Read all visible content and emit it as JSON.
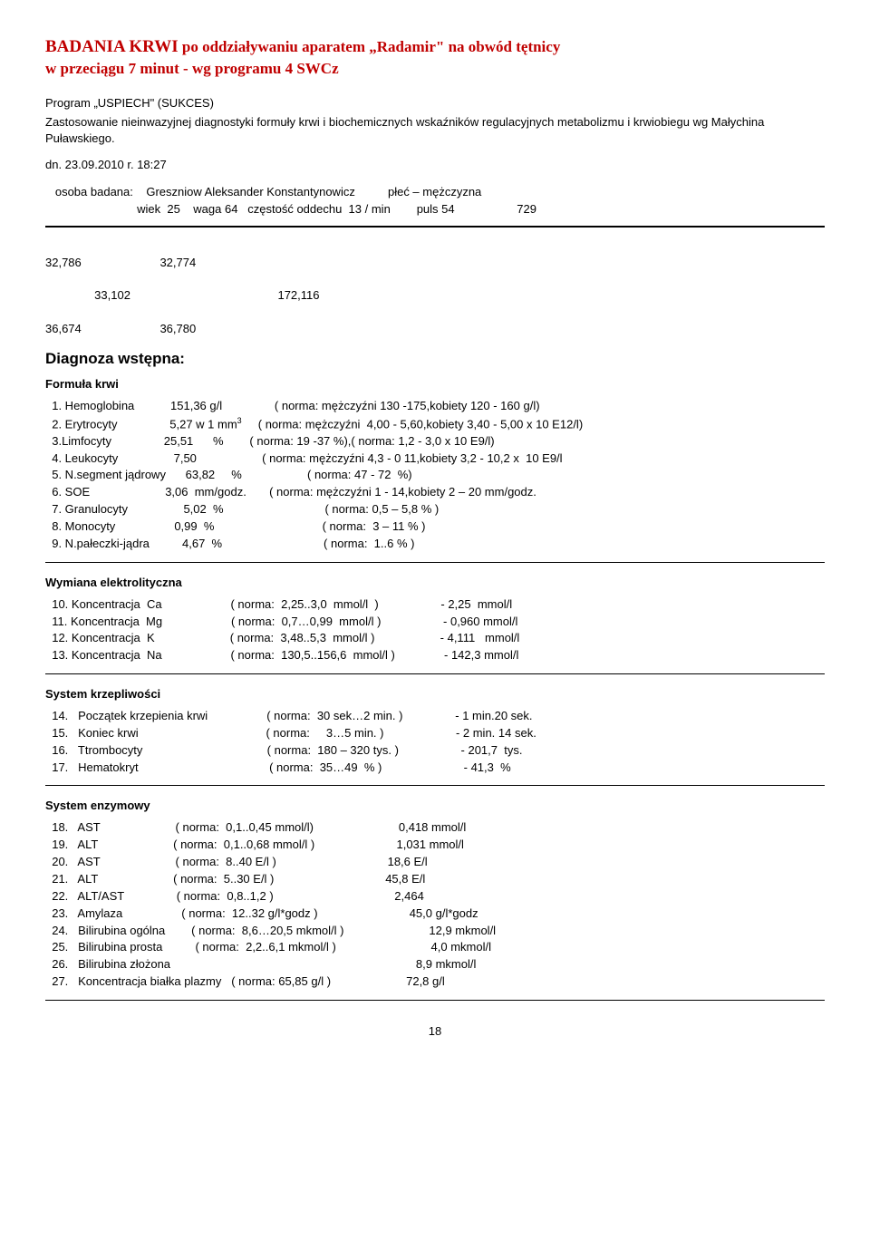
{
  "header": {
    "title_line1_a": "BADANIA  KRWI",
    "title_line1_b": "  po oddziaływaniu aparatem „Radamir\" na obwód tętnicy",
    "title_line2": "  w przeciągu 7 minut -  wg programu 4  SWCz"
  },
  "intro": {
    "line1": "Program „USPIECH\" (SUKCES)",
    "line2": "Zastosowanie nieinwazyjnej diagnostyki formuły krwi i biochemicznych wskaźników regulacyjnych metabolizmu i krwiobiegu wg Małychina Puławskiego."
  },
  "datetime": "dn. 23.09.2010 r.   18:27",
  "subject": {
    "label": "osoba badana:",
    "name": "Greszniow Aleksander Konstantynowicz",
    "sex": "płeć – mężczyzna",
    "details": "wiek  25    waga 64   częstość oddechu  13 / min        puls 54                   729"
  },
  "nums": {
    "l1": "32,786                        32,774",
    "l2": "               33,102                                             172,116",
    "l3": "36,674                        36,780"
  },
  "diag_h": "Diagnoza  wstępna:",
  "formula_h": "Formuła krwi",
  "formula_rows": [
    "  1. Hemoglobina           151,36 g/l                ( norma: mężczyźni 130 -175,kobiety 120 - 160 g/l)",
    "  2. Erytrocyty                5,27 w 1 mm³     ( norma: mężczyźni  4,00 - 5,60,kobiety 3,40 - 5,00 x 10 E12/l)",
    "  3.Limfocyty                25,51      %        ( norma: 19 -37 %),( norma: 1,2 - 3,0 x 10 E9/l)",
    "  4. Leukocyty                 7,50                    ( norma: mężczyźni 4,3 - 0 11,kobiety 3,2 - 10,2 x  10 E9/l",
    "  5. N.segment jądrowy      63,82     %                    ( norma: 47 - 72  %)",
    "  6. SOE                       3,06  mm/godz.       ( norma: mężczyźni 1 - 14,kobiety 2 – 20 mm/godz.",
    "  7. Granulocyty                 5,02  %                               ( norma: 0,5 – 5,8 % )",
    "  8. Monocyty                  0,99  %                                 ( norma:  3 – 11 % )",
    "  9. N.pałeczki-jądra          4,67  %                               ( norma:  1..6 % )"
  ],
  "electro_h": "Wymiana elektrolityczna",
  "electro_rows": [
    "  10. Koncentracja  Ca                     ( norma:  2,25..3,0  mmol/l  )                   - 2,25  mmol/l",
    "  11. Koncentracja  Mg                     ( norma:  0,7…0,99  mmol/l )                   - 0,960 mmol/l",
    "  12. Koncentracja  K                       ( norma:  3,48..5,3  mmol/l )                    - 4,111   mmol/l",
    "  13. Koncentracja  Na                     ( norma:  130,5..156,6  mmol/l )               - 142,3 mmol/l"
  ],
  "coag_h": "System krzepliwości",
  "coag_rows": [
    "  14.   Początek krzepienia krwi                  ( norma:  30 sek…2 min. )                - 1 min.20 sek.",
    "  15.   Koniec krwi                                       ( norma:     3…5 min. )                      - 2 min. 14 sek.",
    "  16.   Ttrombocyty                                      ( norma:  180 – 320 tys. )                   - 201,7  tys.",
    "  17.   Hematokryt                                        ( norma:  35…49  % )                         - 41,3  %"
  ],
  "enz_h": "System enzymowy",
  "enz_rows": [
    "  18.   AST                       ( norma:  0,1..0,45 mmol/l)                          0,418 mmol/l",
    "  19.   ALT                       ( norma:  0,1..0,68 mmol/l )                         1,031 mmol/l",
    "  20.   AST                       ( norma:  8..40 E/l )                                  18,6 E/l",
    "  21.   ALT                       ( norma:  5..30 E/l )                                  45,8 E/l",
    "  22.   ALT/AST                ( norma:  0,8..1,2 )                                     2,464",
    "  23.   Amylaza                  ( norma:  12..32 g/l*godz )                            45,0 g/l*godz",
    "  24.   Bilirubina ogólna        ( norma:  8,6…20,5 mkmol/l )                          12,9 mkmol/l",
    "  25.   Bilirubina prosta          ( norma:  2,2..6,1 mkmol/l )                             4,0 mkmol/l",
    "  26.   Bilirubina złożona                                                                           8,9 mkmol/l",
    "  27.   Koncentracja białka plazmy   ( norma: 65,85 g/l )                       72,8 g/l"
  ],
  "page_number": "18"
}
